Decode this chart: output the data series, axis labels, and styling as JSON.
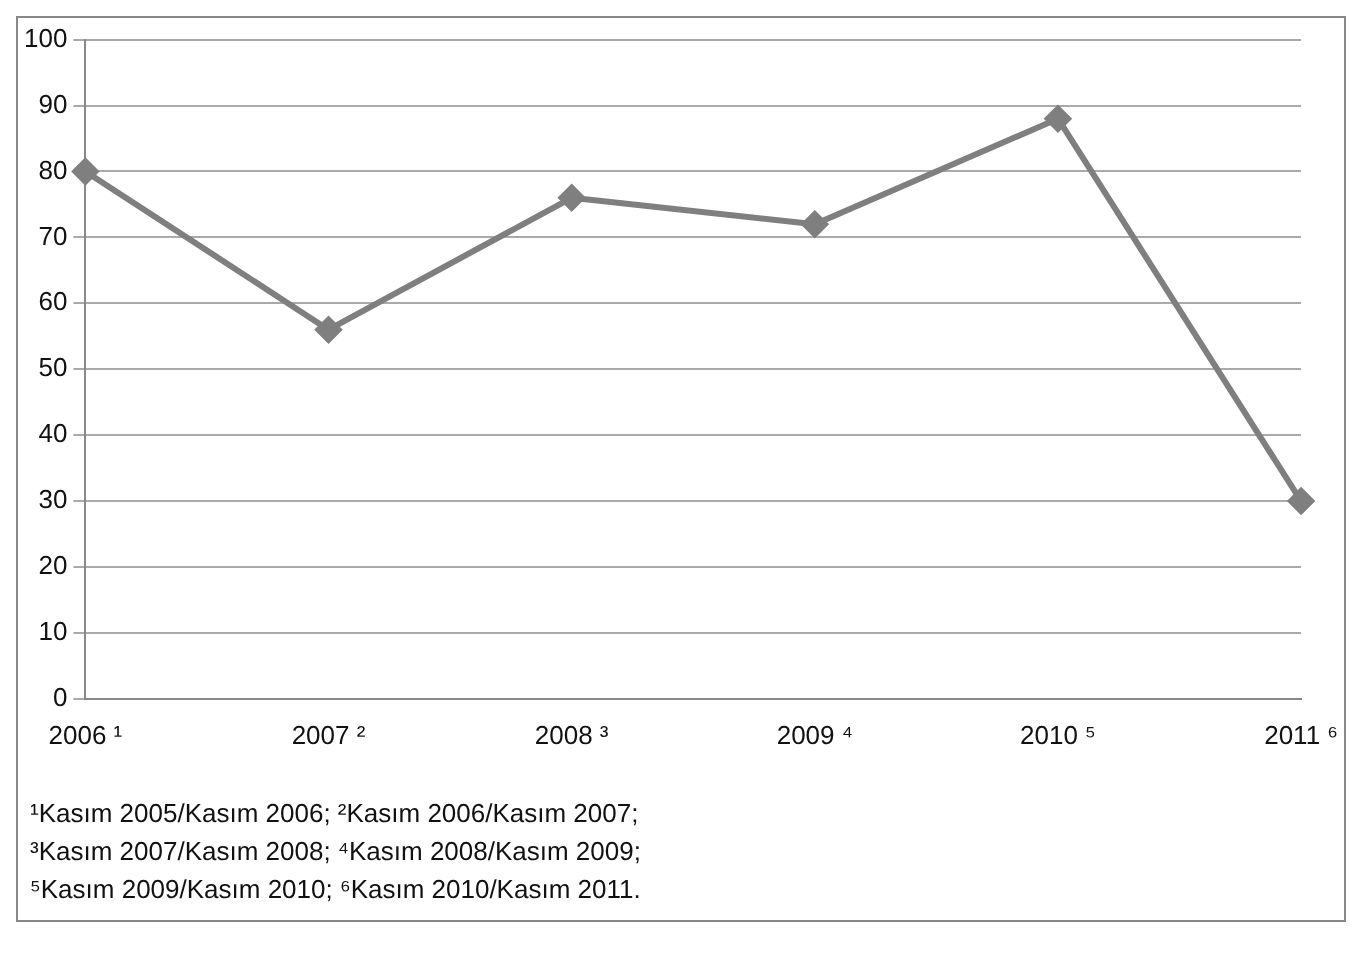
{
  "chart_data": {
    "type": "line",
    "categories": [
      "2006 ¹",
      "2007 ²",
      "2008 ³",
      "2009 ⁴",
      "2010 ⁵",
      "2011 ⁶"
    ],
    "series": [
      {
        "color": "#7f7f7f",
        "values": [
          80,
          56,
          76,
          72,
          88,
          30
        ]
      }
    ],
    "ylim": [
      0,
      100
    ],
    "yticks": [
      0,
      10,
      20,
      30,
      40,
      50,
      60,
      70,
      80,
      90,
      100
    ],
    "grid": "y",
    "marker": "diamond",
    "line_style": "solid",
    "legend": false,
    "annotations": [
      "¹Kasım 2005/Kasım 2006; ²Kasım 2006/Kasım 2007;",
      "³Kasım 2007/Kasım 2008; ⁴Kasım 2008/Kasım 2009;",
      "⁵Kasım 2009/Kasım 2010; ⁶Kasım 2010/Kasım 2011."
    ]
  }
}
